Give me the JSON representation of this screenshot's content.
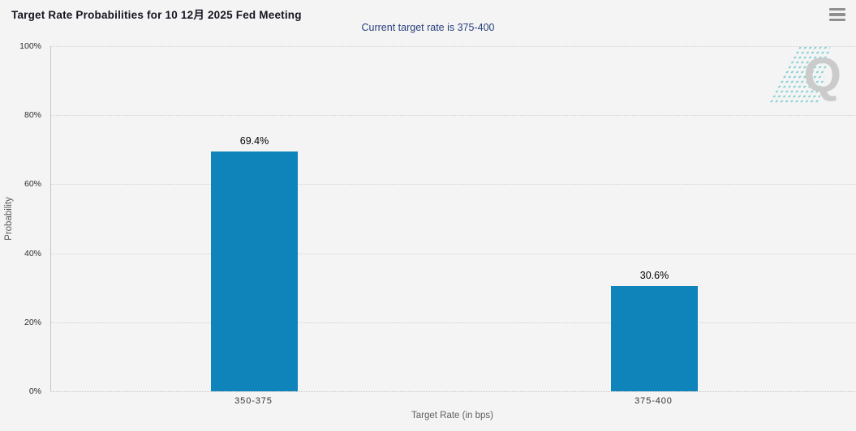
{
  "header": {
    "title": "Target Rate Probabilities for 10 12月 2025 Fed Meeting",
    "menu_icon": "hamburger-icon"
  },
  "chart_data": {
    "type": "bar",
    "title": "Target Rate Probabilities for 10 12月 2025 Fed Meeting",
    "subtitle": "Current target rate is 375-400",
    "categories": [
      "350-375",
      "375-400"
    ],
    "values": [
      69.4,
      30.6
    ],
    "value_labels": [
      "69.4%",
      "30.6%"
    ],
    "xlabel": "Target Rate (in bps)",
    "ylabel": "Probability",
    "ylim": [
      0,
      100
    ],
    "yticks": [
      "0%",
      "20%",
      "40%",
      "60%",
      "80%",
      "100%"
    ],
    "grid": "horizontal dotted gridlines every 20%",
    "legend_position": "none",
    "bar_color": "#0e84ba",
    "subtitle_color": "#27407b"
  },
  "watermark": {
    "letter": "Q",
    "accent_color": "#8ad2d4",
    "letter_color": "#cbcbcb"
  }
}
